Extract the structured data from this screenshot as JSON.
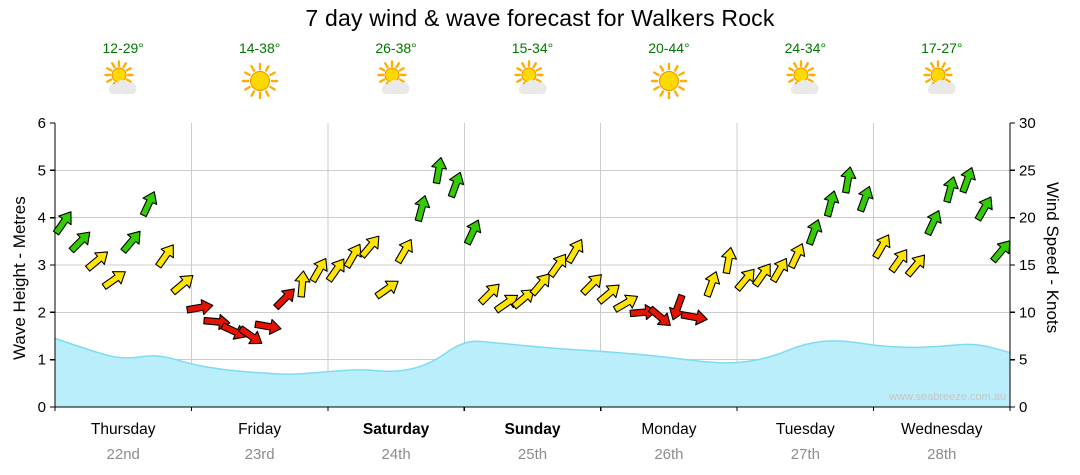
{
  "page": {
    "title": "7 day wind & wave forecast for Walkers Rock",
    "watermark": "www.seabreeze.com.au"
  },
  "chart_data": {
    "type": "combo-wave-area-wind-arrows",
    "title": "7 day wind & wave forecast for Walkers Rock",
    "location": "Walkers Rock",
    "days": [
      {
        "name": "Thursday",
        "date": "22nd",
        "temp": "12-29°",
        "icon": "partly-cloudy",
        "weekend": false
      },
      {
        "name": "Friday",
        "date": "23rd",
        "temp": "14-38°",
        "icon": "sunny",
        "weekend": false
      },
      {
        "name": "Saturday",
        "date": "24th",
        "temp": "26-38°",
        "icon": "partly-cloudy",
        "weekend": true
      },
      {
        "name": "Sunday",
        "date": "25th",
        "temp": "15-34°",
        "icon": "partly-cloudy",
        "weekend": true
      },
      {
        "name": "Monday",
        "date": "26th",
        "temp": "20-44°",
        "icon": "sunny",
        "weekend": false
      },
      {
        "name": "Tuesday",
        "date": "27th",
        "temp": "24-34°",
        "icon": "partly-cloudy",
        "weekend": false
      },
      {
        "name": "Wednesday",
        "date": "28th",
        "temp": "17-27°",
        "icon": "partly-cloudy",
        "weekend": false
      }
    ],
    "wave_axis": {
      "label": "Wave Height - Metres",
      "min": 0,
      "max": 6,
      "step": 1,
      "side": "left"
    },
    "wind_axis": {
      "label": "Wind Speed - Knots",
      "min": 0,
      "max": 30,
      "step": 5,
      "side": "right"
    },
    "wave_series": {
      "name": "Wave Height",
      "unit": "m",
      "t_days": [
        0,
        0.25,
        0.5,
        0.75,
        1,
        1.25,
        1.5,
        1.75,
        2,
        2.25,
        2.5,
        2.75,
        3,
        3.25,
        3.5,
        3.75,
        4,
        4.25,
        4.5,
        4.75,
        5,
        5.25,
        5.5,
        5.75,
        6,
        6.25,
        6.5,
        6.75,
        7
      ],
      "heights": [
        1.45,
        1.2,
        1.0,
        1.12,
        0.9,
        0.78,
        0.72,
        0.68,
        0.75,
        0.8,
        0.73,
        0.9,
        1.42,
        1.35,
        1.28,
        1.22,
        1.18,
        1.12,
        1.05,
        0.95,
        0.92,
        1.05,
        1.35,
        1.42,
        1.3,
        1.25,
        1.28,
        1.35,
        1.15
      ]
    },
    "wind_series": {
      "name": "Wind Speed",
      "unit": "knots",
      "points_per_day": 8,
      "knots": [
        19.5,
        17.5,
        15.5,
        13.5,
        17.5,
        21.5,
        16,
        13,
        10.5,
        9,
        8,
        7.5,
        8.5,
        11.5,
        13,
        14.5,
        14.5,
        16,
        17,
        12.5,
        16.5,
        21,
        25,
        23.5,
        18.5,
        12,
        11,
        11.5,
        13,
        15,
        16.5,
        13,
        12,
        11,
        10,
        9.5,
        10.5,
        9.5,
        13,
        15.5,
        13.5,
        14,
        14.5,
        16,
        18.5,
        21.5,
        24,
        22,
        17,
        15.5,
        15,
        19.5,
        23,
        24,
        21,
        16.5
      ],
      "dir_deg": [
        35,
        45,
        50,
        55,
        40,
        25,
        35,
        50,
        80,
        95,
        115,
        125,
        100,
        45,
        5,
        30,
        35,
        30,
        40,
        55,
        30,
        15,
        10,
        20,
        25,
        45,
        55,
        50,
        40,
        35,
        30,
        45,
        50,
        60,
        85,
        130,
        200,
        100,
        20,
        10,
        40,
        35,
        30,
        25,
        20,
        15,
        10,
        20,
        30,
        35,
        40,
        25,
        15,
        20,
        30,
        40
      ],
      "colors": [
        "g",
        "g",
        "y",
        "y",
        "g",
        "g",
        "y",
        "y",
        "r",
        "r",
        "r",
        "r",
        "r",
        "r",
        "y",
        "y",
        "y",
        "y",
        "y",
        "y",
        "y",
        "g",
        "g",
        "g",
        "g",
        "y",
        "y",
        "y",
        "y",
        "y",
        "y",
        "y",
        "y",
        "y",
        "r",
        "r",
        "r",
        "r",
        "y",
        "y",
        "y",
        "y",
        "y",
        "y",
        "g",
        "g",
        "g",
        "g",
        "y",
        "y",
        "y",
        "g",
        "g",
        "g",
        "g",
        "g"
      ]
    },
    "colors": {
      "wave_fill": "#b9eefa",
      "wave_line": "#7fdcf0",
      "arrow_green": "#33cc00",
      "arrow_yellow": "#ffe400",
      "arrow_red": "#e51400",
      "temp_text": "#007700",
      "date_text": "#8c8c8c",
      "grid": "#cccccc",
      "axis": "#000000"
    }
  }
}
